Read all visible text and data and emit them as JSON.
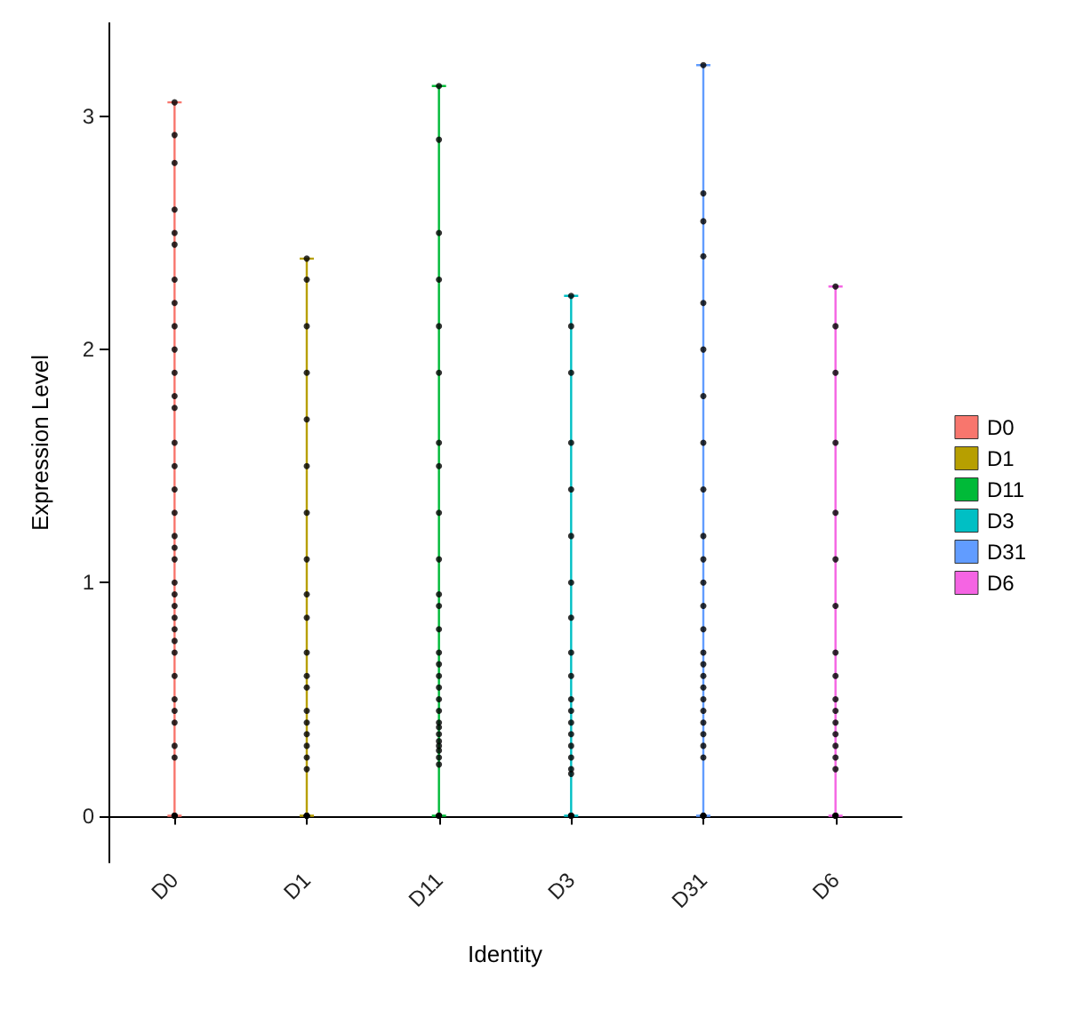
{
  "chart_data": {
    "type": "box",
    "xlabel": "Identity",
    "ylabel": "Expression Level",
    "categories": [
      "D0",
      "D1",
      "D11",
      "D3",
      "D31",
      "D6"
    ],
    "ylim": [
      -0.2,
      3.4
    ],
    "yticks": [
      0,
      1,
      2,
      3
    ],
    "grid": false,
    "legend": "right",
    "series": [
      {
        "name": "D0",
        "color": "#f8766d",
        "boxes": [
          {
            "low": 0,
            "q1": 0,
            "median": 0,
            "q3": 0,
            "high": 3.06
          },
          null,
          null,
          null,
          null,
          null
        ]
      },
      {
        "name": "D1",
        "color": "#b79f00",
        "boxes": [
          null,
          {
            "low": 0,
            "q1": 0,
            "median": 0,
            "q3": 0,
            "high": 2.39
          },
          null,
          null,
          null,
          null
        ]
      },
      {
        "name": "D11",
        "color": "#00ba38",
        "boxes": [
          null,
          null,
          {
            "low": 0,
            "q1": 0,
            "median": 0,
            "q3": 0,
            "high": 3.13
          },
          null,
          null,
          null
        ]
      },
      {
        "name": "D3",
        "color": "#00bfc4",
        "boxes": [
          null,
          null,
          null,
          {
            "low": 0,
            "q1": 0,
            "median": 0,
            "q3": 0,
            "high": 2.23
          },
          null,
          null
        ]
      },
      {
        "name": "D31",
        "color": "#619cff",
        "boxes": [
          null,
          null,
          null,
          null,
          {
            "low": 0,
            "q1": 0,
            "median": 0,
            "q3": 0,
            "high": 3.22
          },
          null
        ]
      },
      {
        "name": "D6",
        "color": "#f564e3",
        "boxes": [
          null,
          null,
          null,
          null,
          null,
          {
            "low": 0,
            "q1": 0,
            "median": 0,
            "q3": 0,
            "high": 2.27
          }
        ]
      },
      {
        "type": "scatter",
        "color": "#000000",
        "marker": "circle",
        "x": [
          "D0",
          "D0",
          "D0",
          "D0",
          "D0",
          "D0",
          "D0",
          "D0",
          "D0",
          "D0",
          "D0",
          "D0",
          "D0",
          "D0",
          "D0",
          "D0",
          "D0",
          "D0",
          "D0",
          "D0",
          "D0",
          "D0",
          "D0",
          "D0",
          "D0",
          "D0",
          "D0",
          "D0",
          "D0",
          "D0",
          "D0",
          "D0",
          "D0",
          "D0",
          "D0",
          "D0",
          "D0",
          "D1",
          "D1",
          "D1",
          "D1",
          "D1",
          "D1",
          "D1",
          "D1",
          "D1",
          "D1",
          "D1",
          "D1",
          "D1",
          "D1",
          "D1",
          "D1",
          "D1",
          "D1",
          "D1",
          "D1",
          "D1",
          "D1",
          "D1",
          "D11",
          "D11",
          "D11",
          "D11",
          "D11",
          "D11",
          "D11",
          "D11",
          "D11",
          "D11",
          "D11",
          "D11",
          "D11",
          "D11",
          "D11",
          "D11",
          "D11",
          "D11",
          "D11",
          "D11",
          "D11",
          "D11",
          "D11",
          "D11",
          "D11",
          "D11",
          "D11",
          "D11",
          "D11",
          "D11",
          "D11",
          "D3",
          "D3",
          "D3",
          "D3",
          "D3",
          "D3",
          "D3",
          "D3",
          "D3",
          "D3",
          "D3",
          "D3",
          "D3",
          "D3",
          "D3",
          "D3",
          "D3",
          "D3",
          "D3",
          "D3",
          "D3",
          "D3",
          "D31",
          "D31",
          "D31",
          "D31",
          "D31",
          "D31",
          "D31",
          "D31",
          "D31",
          "D31",
          "D31",
          "D31",
          "D31",
          "D31",
          "D31",
          "D31",
          "D31",
          "D31",
          "D31",
          "D31",
          "D31",
          "D31",
          "D31",
          "D31",
          "D31",
          "D31",
          "D31",
          "D31",
          "D6",
          "D6",
          "D6",
          "D6",
          "D6",
          "D6",
          "D6",
          "D6",
          "D6",
          "D6",
          "D6",
          "D6",
          "D6",
          "D6",
          "D6",
          "D6",
          "D6",
          "D6",
          "D6",
          "D6"
        ],
        "values": [
          0,
          0,
          0,
          0,
          3.06,
          2.92,
          2.8,
          2.6,
          2.5,
          2.45,
          2.3,
          2.2,
          2.1,
          2.0,
          1.9,
          1.8,
          1.75,
          1.6,
          1.5,
          1.4,
          1.3,
          1.2,
          1.15,
          1.1,
          1.0,
          0.95,
          0.9,
          0.85,
          0.8,
          0.75,
          0.7,
          0.6,
          0.5,
          0.45,
          0.4,
          0.3,
          0.25,
          0,
          0,
          0,
          0,
          2.39,
          2.3,
          2.1,
          1.9,
          1.7,
          1.5,
          1.3,
          1.1,
          0.95,
          0.85,
          0.7,
          0.6,
          0.55,
          0.45,
          0.4,
          0.35,
          0.3,
          0.25,
          0.2,
          0,
          0,
          0,
          0,
          3.13,
          2.9,
          2.5,
          2.3,
          2.1,
          1.9,
          1.6,
          1.5,
          1.3,
          1.1,
          0.95,
          0.9,
          0.8,
          0.7,
          0.65,
          0.6,
          0.55,
          0.5,
          0.45,
          0.4,
          0.38,
          0.35,
          0.32,
          0.3,
          0.28,
          0.25,
          0.22,
          0,
          0,
          0,
          0,
          2.23,
          2.1,
          1.9,
          1.6,
          1.4,
          1.2,
          1.0,
          0.85,
          0.7,
          0.6,
          0.5,
          0.45,
          0.4,
          0.35,
          0.3,
          0.25,
          0.2,
          0.18,
          0,
          0,
          0,
          0,
          3.22,
          2.67,
          2.55,
          2.4,
          2.2,
          2.0,
          1.8,
          1.6,
          1.4,
          1.2,
          1.1,
          1.0,
          0.9,
          0.8,
          0.7,
          0.65,
          0.6,
          0.55,
          0.5,
          0.45,
          0.4,
          0.35,
          0.3,
          0.25,
          0,
          0,
          0,
          0,
          2.27,
          2.1,
          1.9,
          1.6,
          1.3,
          1.1,
          0.9,
          0.7,
          0.6,
          0.5,
          0.45,
          0.4,
          0.35,
          0.3,
          0.25,
          0.2
        ]
      }
    ]
  }
}
